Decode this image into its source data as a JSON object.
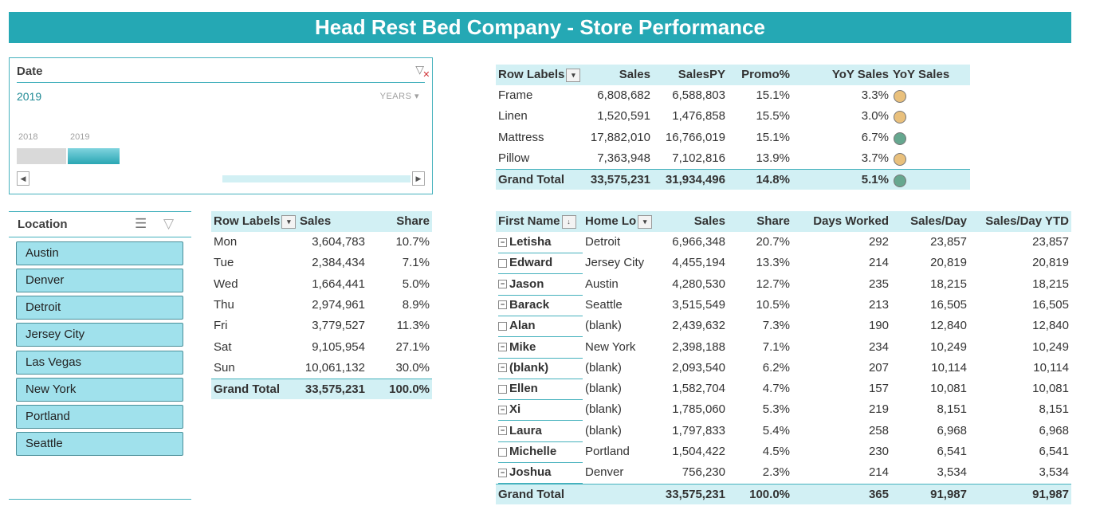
{
  "title": "Head Rest Bed Company - Store Performance",
  "colors": {
    "accent": "#25a8b4",
    "header_fill": "#d2f0f4",
    "slicer_button": "#a0e1ec",
    "dot_amber": "#e9c07c",
    "dot_green": "#66a78f"
  },
  "date_slicer": {
    "header": "Date",
    "selection": "2019",
    "level": "YEARS",
    "years": [
      {
        "label": "2018",
        "selected": false
      },
      {
        "label": "2019",
        "selected": true
      }
    ],
    "clear_icon": "clear-filter-icon"
  },
  "location_slicer": {
    "header": "Location",
    "items": [
      "Austin",
      "Denver",
      "Detroit",
      "Jersey City",
      "Las Vegas",
      "New York",
      "Portland",
      "Seattle"
    ]
  },
  "category_pivot": {
    "headers": [
      "Row Labels",
      "Sales",
      "SalesPY",
      "Promo%",
      "YoY Sales",
      "YoY Sales"
    ],
    "rows": [
      {
        "label": "Frame",
        "sales": "6,808,682",
        "sales_py": "6,588,803",
        "promo": "15.1%",
        "yoy": "3.3%",
        "indicator": "amber"
      },
      {
        "label": "Linen",
        "sales": "1,520,591",
        "sales_py": "1,476,858",
        "promo": "15.5%",
        "yoy": "3.0%",
        "indicator": "amber"
      },
      {
        "label": "Mattress",
        "sales": "17,882,010",
        "sales_py": "16,766,019",
        "promo": "15.1%",
        "yoy": "6.7%",
        "indicator": "green"
      },
      {
        "label": "Pillow",
        "sales": "7,363,948",
        "sales_py": "7,102,816",
        "promo": "13.9%",
        "yoy": "3.7%",
        "indicator": "amber"
      }
    ],
    "total": {
      "label": "Grand Total",
      "sales": "33,575,231",
      "sales_py": "31,934,496",
      "promo": "14.8%",
      "yoy": "5.1%",
      "indicator": "green"
    }
  },
  "weekday_pivot": {
    "headers": [
      "Row Labels",
      "Sales",
      "Share"
    ],
    "rows": [
      {
        "label": "Mon",
        "sales": "3,604,783",
        "share": "10.7%"
      },
      {
        "label": "Tue",
        "sales": "2,384,434",
        "share": "7.1%"
      },
      {
        "label": "Wed",
        "sales": "1,664,441",
        "share": "5.0%"
      },
      {
        "label": "Thu",
        "sales": "2,974,961",
        "share": "8.9%"
      },
      {
        "label": "Fri",
        "sales": "3,779,527",
        "share": "11.3%"
      },
      {
        "label": "Sat",
        "sales": "9,105,954",
        "share": "27.1%"
      },
      {
        "label": "Sun",
        "sales": "10,061,132",
        "share": "30.0%"
      }
    ],
    "total": {
      "label": "Grand Total",
      "sales": "33,575,231",
      "share": "100.0%"
    }
  },
  "staff_pivot": {
    "headers": [
      "First Name",
      "Home Lo",
      "Sales",
      "Share",
      "Days Worked",
      "Sales/Day",
      "Sales/Day YTD"
    ],
    "rows": [
      {
        "name": "Letisha",
        "home": "Detroit",
        "sales": "6,966,348",
        "share": "20.7%",
        "days": "292",
        "spd": "23,857",
        "spd_ytd": "23,857"
      },
      {
        "name": "Edward",
        "home": "Jersey City",
        "sales": "4,455,194",
        "share": "13.3%",
        "days": "214",
        "spd": "20,819",
        "spd_ytd": "20,819"
      },
      {
        "name": "Jason",
        "home": "Austin",
        "sales": "4,280,530",
        "share": "12.7%",
        "days": "235",
        "spd": "18,215",
        "spd_ytd": "18,215"
      },
      {
        "name": "Barack",
        "home": "Seattle",
        "sales": "3,515,549",
        "share": "10.5%",
        "days": "213",
        "spd": "16,505",
        "spd_ytd": "16,505"
      },
      {
        "name": "Alan",
        "home": "(blank)",
        "sales": "2,439,632",
        "share": "7.3%",
        "days": "190",
        "spd": "12,840",
        "spd_ytd": "12,840"
      },
      {
        "name": "Mike",
        "home": "New York",
        "sales": "2,398,188",
        "share": "7.1%",
        "days": "234",
        "spd": "10,249",
        "spd_ytd": "10,249"
      },
      {
        "name": "(blank)",
        "home": "(blank)",
        "sales": "2,093,540",
        "share": "6.2%",
        "days": "207",
        "spd": "10,114",
        "spd_ytd": "10,114"
      },
      {
        "name": "Ellen",
        "home": "(blank)",
        "sales": "1,582,704",
        "share": "4.7%",
        "days": "157",
        "spd": "10,081",
        "spd_ytd": "10,081"
      },
      {
        "name": "Xi",
        "home": "(blank)",
        "sales": "1,785,060",
        "share": "5.3%",
        "days": "219",
        "spd": "8,151",
        "spd_ytd": "8,151"
      },
      {
        "name": "Laura",
        "home": "(blank)",
        "sales": "1,797,833",
        "share": "5.4%",
        "days": "258",
        "spd": "6,968",
        "spd_ytd": "6,968"
      },
      {
        "name": "Michelle",
        "home": "Portland",
        "sales": "1,504,422",
        "share": "4.5%",
        "days": "230",
        "spd": "6,541",
        "spd_ytd": "6,541"
      },
      {
        "name": "Joshua",
        "home": "Denver",
        "sales": "756,230",
        "share": "2.3%",
        "days": "214",
        "spd": "3,534",
        "spd_ytd": "3,534"
      }
    ],
    "total": {
      "label": "Grand Total",
      "sales": "33,575,231",
      "share": "100.0%",
      "days": "365",
      "spd": "91,987",
      "spd_ytd": "91,987"
    }
  }
}
